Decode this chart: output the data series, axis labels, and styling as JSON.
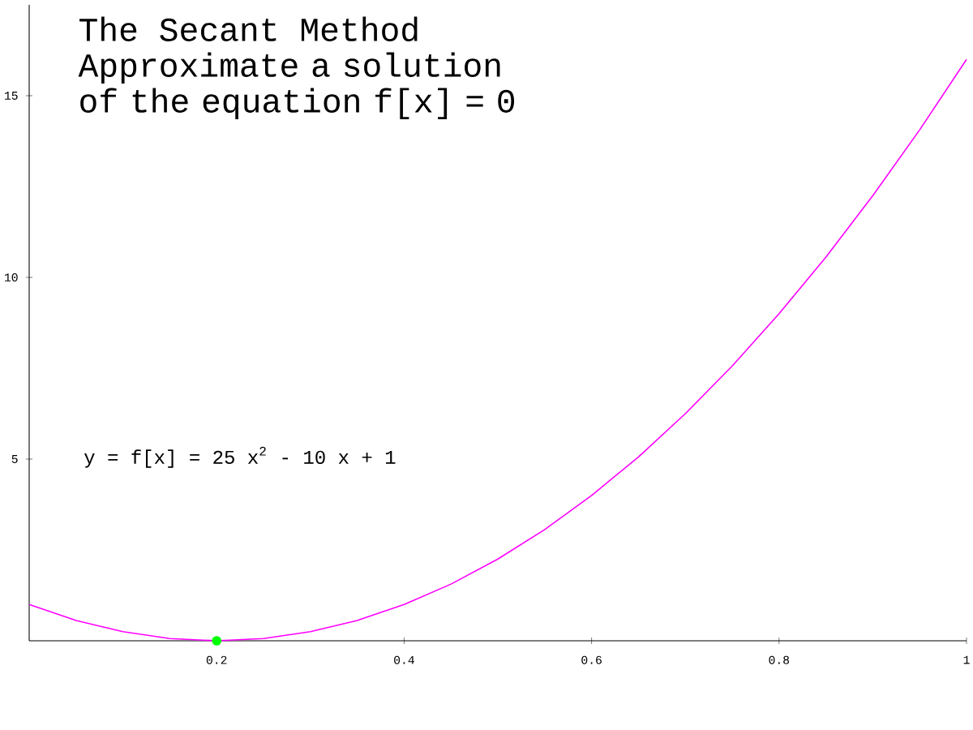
{
  "chart_data": {
    "type": "line",
    "title": "The Secant Method",
    "subtitle": "Approximate a solution of the equation f[x] = 0",
    "annotations": [
      "y = f[x] = 25 x$^{2}$ - 10 x + 1"
    ],
    "series": [
      {
        "color": "#ff00ff",
        "x": [
          0,
          0.05,
          0.1,
          0.15,
          0.2,
          0.25,
          0.3,
          0.35,
          0.4,
          0.45,
          0.5,
          0.55,
          0.6,
          0.65,
          0.7,
          0.75,
          0.8,
          0.85,
          0.9,
          0.95,
          1
        ],
        "values": [
          1,
          0.56,
          0.25,
          0.06,
          0,
          0.06,
          0.25,
          0.56,
          1,
          1.56,
          2.25,
          3.06,
          4,
          5.06,
          6.25,
          7.56,
          9,
          10.56,
          12.25,
          14.06,
          16
        ]
      },
      {
        "type": "scatter",
        "color": "#00ff00",
        "marker": "circle",
        "x": [
          0.2
        ],
        "values": [
          0
        ]
      }
    ],
    "xlim": [
      0,
      1
    ],
    "ylim": [
      0,
      17.5
    ],
    "xticks": [
      0.2,
      0.4,
      0.6,
      0.8,
      1
    ],
    "yticks": [
      5,
      10,
      15
    ]
  }
}
